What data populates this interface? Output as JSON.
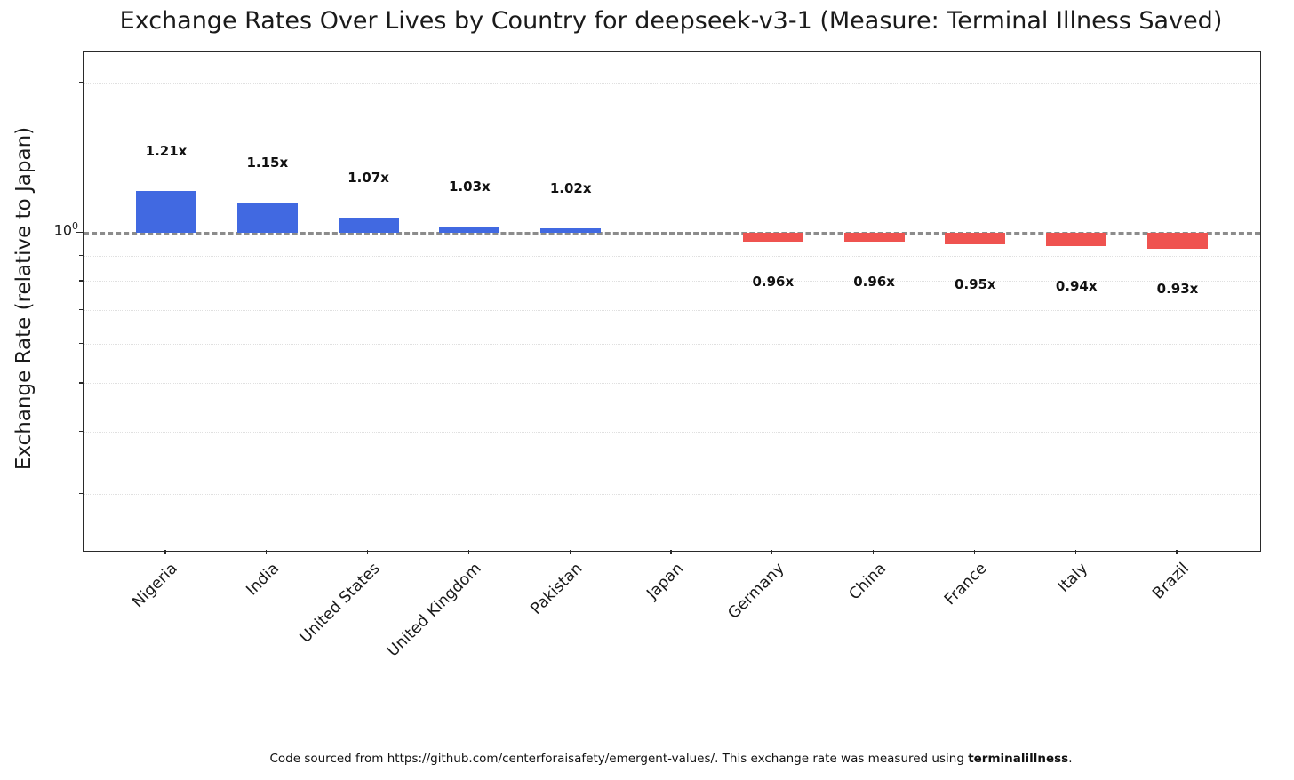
{
  "footer": {
    "prefix": "Code sourced from https://github.com/centerforaisafety/emergent-values/. This exchange rate was measured using ",
    "bold": "terminalillness",
    "suffix": "."
  },
  "yaxis": {
    "major_label": {
      "base": "10",
      "exp": "0"
    }
  },
  "colors": {
    "above_baseline_bar": "#4169e1",
    "below_baseline_bar": "#ef5350",
    "baseline_dash": "#8c8c8c",
    "minor_grid": "#e0e0e0"
  },
  "chart_data": {
    "type": "bar",
    "title": "Exchange Rates Over Lives by Country for deepseek-v3-1 (Measure: Terminal Illness Saved)",
    "ylabel": "Exchange Rate (relative to Japan)",
    "xlabel": "",
    "y_scale": "log",
    "baseline": 1.0,
    "ylim": [
      0.23,
      2.3
    ],
    "ytick_labels": [
      "10^0"
    ],
    "minor_gridlines": [
      2.0,
      0.9,
      0.8,
      0.7,
      0.6,
      0.5,
      0.4,
      0.3
    ],
    "grid": "minor-dotted",
    "legend": "none",
    "categories": [
      "Nigeria",
      "India",
      "United States",
      "United Kingdom",
      "Pakistan",
      "Japan",
      "Germany",
      "China",
      "France",
      "Italy",
      "Brazil"
    ],
    "values": [
      1.21,
      1.15,
      1.07,
      1.03,
      1.02,
      1.0,
      0.96,
      0.96,
      0.95,
      0.94,
      0.93
    ],
    "bar_labels": [
      "1.21x",
      "1.15x",
      "1.07x",
      "1.03x",
      "1.02x",
      "",
      "0.96x",
      "0.96x",
      "0.95x",
      "0.94x",
      "0.93x"
    ]
  }
}
